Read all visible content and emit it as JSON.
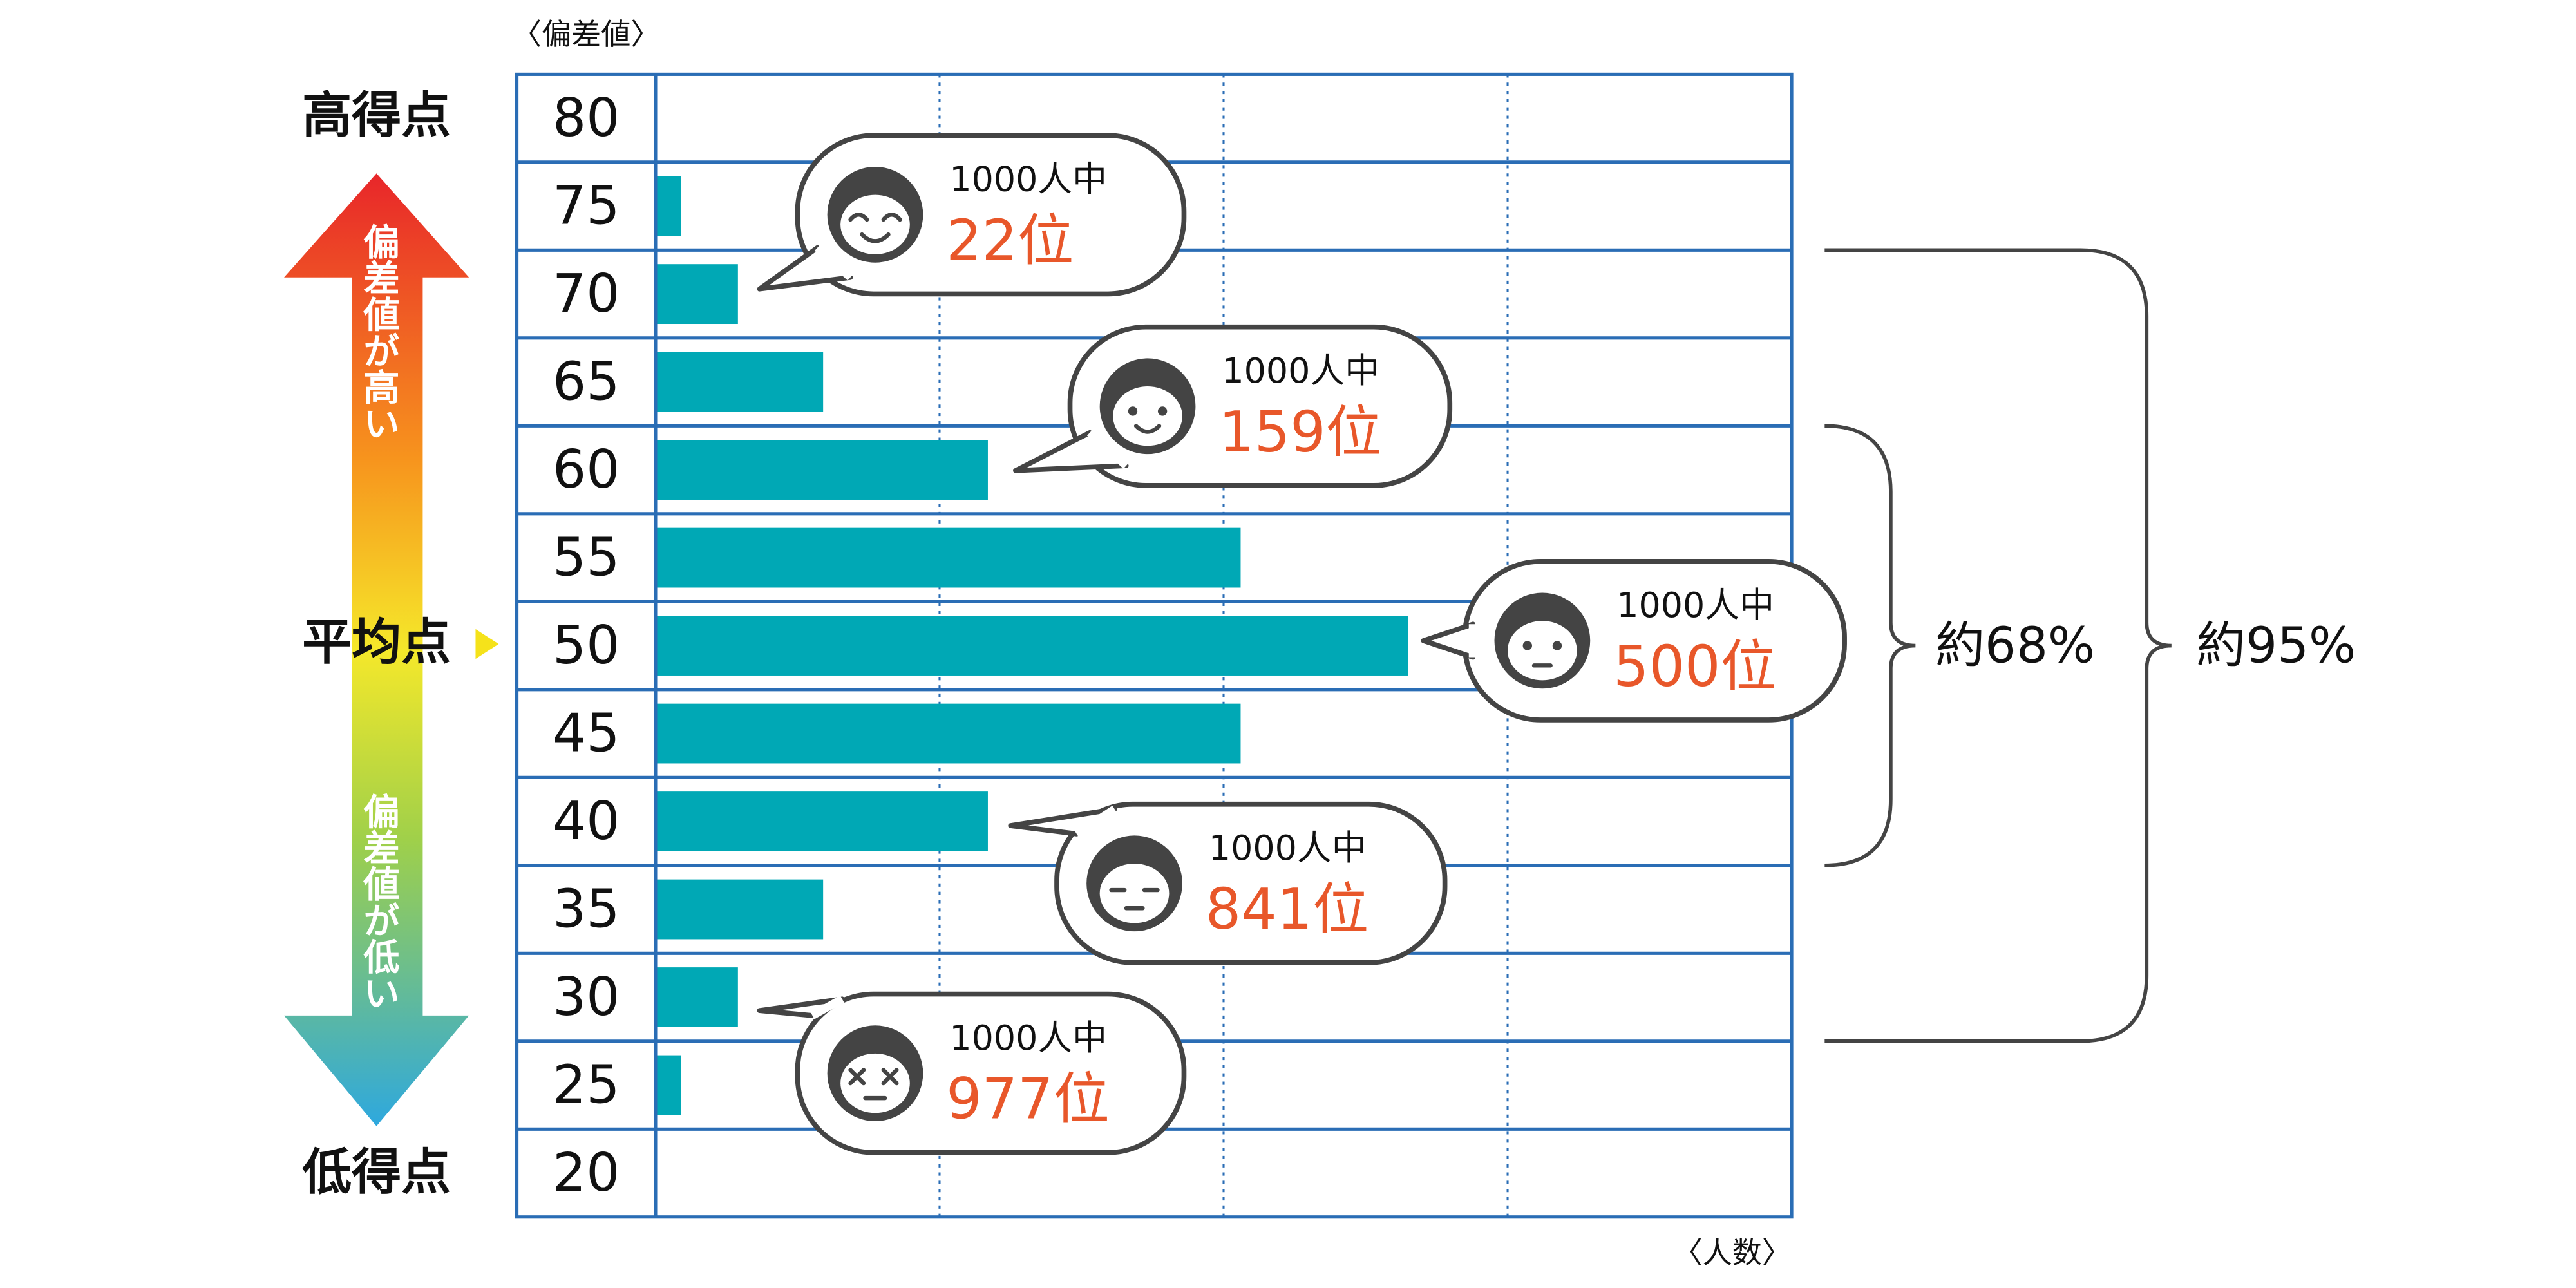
{
  "chart_data": {
    "type": "bar",
    "orientation": "horizontal",
    "y_axis_label": "〈偏差値〉",
    "x_axis_label": "〈人数〉",
    "categories": [
      "80",
      "75",
      "70",
      "65",
      "60",
      "55",
      "50",
      "45",
      "40",
      "35",
      "30",
      "25",
      "20"
    ],
    "values": [
      0,
      0.09,
      0.29,
      0.59,
      1.17,
      2.06,
      2.65,
      2.06,
      1.17,
      0.59,
      0.29,
      0.09,
      0
    ],
    "color": "#00a8b5",
    "xlim": [
      0,
      4
    ],
    "xticks": [
      1,
      2,
      3
    ],
    "grid": true,
    "side_labels": {
      "top": "高得点",
      "middle": "平均点",
      "bottom": "低得点"
    },
    "arrow_labels": {
      "up": "偏差値が高い",
      "down": "偏差値が低い"
    },
    "callouts": [
      {
        "caption": "1000人中",
        "rank": "22位"
      },
      {
        "caption": "1000人中",
        "rank": "159位"
      },
      {
        "caption": "1000人中",
        "rank": "500位"
      },
      {
        "caption": "1000人中",
        "rank": "841位"
      },
      {
        "caption": "1000人中",
        "rank": "977位"
      }
    ],
    "ranges": [
      {
        "label": "約68%"
      },
      {
        "label": "約95%"
      }
    ]
  }
}
